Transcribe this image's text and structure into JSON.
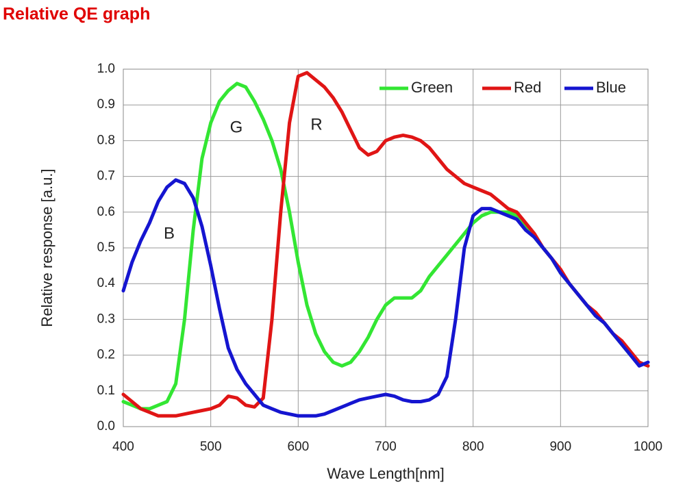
{
  "chart_data": {
    "type": "line",
    "title": "Relative QE graph",
    "x_label": "Wave Length[nm]",
    "y_label": "Relative response [a.u.]",
    "x": [
      400,
      410,
      420,
      430,
      440,
      450,
      460,
      470,
      480,
      490,
      500,
      510,
      520,
      530,
      540,
      550,
      560,
      570,
      580,
      590,
      600,
      610,
      620,
      630,
      640,
      650,
      660,
      670,
      680,
      690,
      700,
      710,
      720,
      730,
      740,
      750,
      760,
      770,
      780,
      790,
      800,
      810,
      820,
      830,
      840,
      850,
      860,
      870,
      880,
      890,
      900,
      910,
      920,
      930,
      940,
      950,
      960,
      970,
      980,
      990,
      1000
    ],
    "series": [
      {
        "name": "Green",
        "color": "#33e633",
        "values": [
          0.07,
          0.06,
          0.05,
          0.05,
          0.06,
          0.07,
          0.12,
          0.3,
          0.55,
          0.75,
          0.85,
          0.91,
          0.94,
          0.96,
          0.95,
          0.91,
          0.86,
          0.8,
          0.72,
          0.6,
          0.46,
          0.34,
          0.26,
          0.21,
          0.18,
          0.17,
          0.18,
          0.21,
          0.25,
          0.3,
          0.34,
          0.36,
          0.36,
          0.36,
          0.38,
          0.42,
          0.45,
          0.48,
          0.51,
          0.54,
          0.57,
          0.59,
          0.6,
          0.6,
          0.6,
          0.59,
          0.56,
          0.53,
          0.5,
          0.47,
          0.43,
          0.4,
          0.37,
          0.34,
          0.31,
          0.29,
          0.26,
          0.23,
          0.2,
          0.18,
          0.17
        ]
      },
      {
        "name": "Red",
        "color": "#e01515",
        "values": [
          0.09,
          0.07,
          0.05,
          0.04,
          0.03,
          0.03,
          0.03,
          0.035,
          0.04,
          0.045,
          0.05,
          0.06,
          0.085,
          0.08,
          0.06,
          0.055,
          0.08,
          0.3,
          0.6,
          0.85,
          0.98,
          0.99,
          0.97,
          0.95,
          0.92,
          0.88,
          0.83,
          0.78,
          0.76,
          0.77,
          0.8,
          0.81,
          0.815,
          0.81,
          0.8,
          0.78,
          0.75,
          0.72,
          0.7,
          0.68,
          0.67,
          0.66,
          0.65,
          0.63,
          0.61,
          0.6,
          0.57,
          0.54,
          0.5,
          0.47,
          0.44,
          0.4,
          0.37,
          0.34,
          0.32,
          0.29,
          0.26,
          0.24,
          0.21,
          0.18,
          0.17
        ]
      },
      {
        "name": "Blue",
        "color": "#1515d0",
        "values": [
          0.38,
          0.46,
          0.52,
          0.57,
          0.63,
          0.67,
          0.69,
          0.68,
          0.64,
          0.56,
          0.45,
          0.33,
          0.22,
          0.16,
          0.12,
          0.09,
          0.06,
          0.05,
          0.04,
          0.035,
          0.03,
          0.03,
          0.03,
          0.035,
          0.045,
          0.055,
          0.065,
          0.075,
          0.08,
          0.085,
          0.09,
          0.085,
          0.075,
          0.07,
          0.07,
          0.075,
          0.09,
          0.14,
          0.3,
          0.5,
          0.59,
          0.61,
          0.61,
          0.6,
          0.59,
          0.58,
          0.55,
          0.53,
          0.5,
          0.47,
          0.43,
          0.4,
          0.37,
          0.34,
          0.31,
          0.29,
          0.26,
          0.23,
          0.2,
          0.17,
          0.18
        ]
      }
    ],
    "annotations": [
      "G",
      "R",
      "B"
    ],
    "xlim": [
      400,
      1000
    ],
    "xticks": [
      400,
      500,
      600,
      700,
      800,
      900,
      1000
    ],
    "ylim": [
      0,
      1.0
    ],
    "yticks": [
      {
        "value": 0,
        "label": "0.0"
      },
      0.1,
      0.2,
      0.3,
      0.4,
      0.5,
      0.6,
      0.7,
      0.8,
      0.9,
      {
        "value": 1.0,
        "label": "1.0"
      }
    ],
    "grid": true,
    "legend": "upper right"
  }
}
